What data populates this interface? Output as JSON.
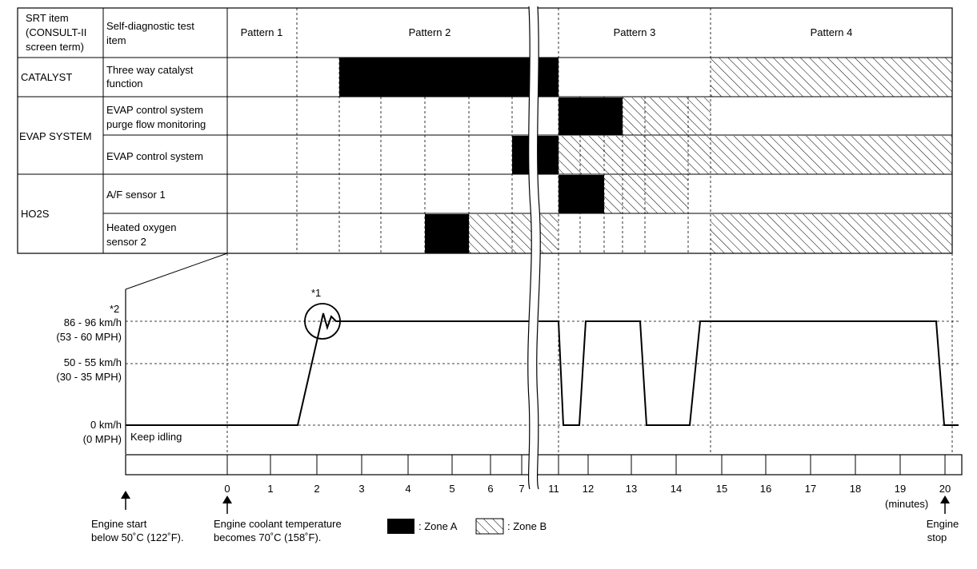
{
  "header": {
    "srt_item": [
      "SRT item",
      "(CONSULT-II",
      "screen term)"
    ],
    "self_diag": [
      "Self-diagnostic test",
      "item"
    ],
    "patterns": [
      "Pattern 1",
      "Pattern 2",
      "Pattern 3",
      "Pattern 4"
    ]
  },
  "rows": {
    "catalyst": "CATALYST",
    "evap_system": "EVAP SYSTEM",
    "ho2s": "HO2S",
    "three_way": [
      "Three way catalyst",
      "function"
    ],
    "evap_purge": [
      "EVAP control system",
      "purge flow monitoring"
    ],
    "evap_control": "EVAP control system",
    "af_sensor": "A/F sensor 1",
    "heated_o2": [
      "Heated oxygen",
      "sensor 2"
    ]
  },
  "speed_labels": {
    "note2": "*2",
    "high": [
      "86 - 96 km/h",
      "(53 - 60 MPH)"
    ],
    "mid": [
      "50 - 55 km/h",
      "(30 - 35 MPH)"
    ],
    "zero": [
      "0 km/h",
      "(0 MPH)"
    ],
    "keep_idling": "Keep idling",
    "note1": "*1"
  },
  "time_axis": {
    "ticks": [
      "0",
      "1",
      "2",
      "3",
      "4",
      "5",
      "6",
      "7",
      "11",
      "12",
      "13",
      "14",
      "15",
      "16",
      "17",
      "18",
      "19",
      "20"
    ],
    "unit": "(minutes)"
  },
  "footnotes": {
    "engine_start": [
      "Engine start",
      "below 50˚C (122˚F)."
    ],
    "coolant": [
      "Engine coolant temperature",
      "becomes 70˚C (158˚F)."
    ],
    "zone_a": ": Zone A",
    "zone_b": ": Zone B",
    "engine_stop": [
      "Engine",
      "stop"
    ]
  }
}
